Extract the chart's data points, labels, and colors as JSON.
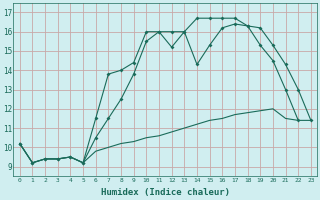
{
  "bg_color": "#d0eef0",
  "grid_color": "#c8a8a8",
  "line_color": "#1a6b5a",
  "xlabel": "Humidex (Indice chaleur)",
  "xlim": [
    -0.5,
    23.5
  ],
  "ylim": [
    8.5,
    17.5
  ],
  "xticks": [
    0,
    1,
    2,
    3,
    4,
    5,
    6,
    7,
    8,
    9,
    10,
    11,
    12,
    13,
    14,
    15,
    16,
    17,
    18,
    19,
    20,
    21,
    22,
    23
  ],
  "yticks": [
    9,
    10,
    11,
    12,
    13,
    14,
    15,
    16,
    17
  ],
  "line1_y": [
    10.2,
    9.2,
    9.4,
    9.4,
    9.5,
    9.2,
    9.8,
    10.0,
    10.2,
    10.3,
    10.5,
    10.6,
    10.8,
    11.0,
    11.2,
    11.4,
    11.5,
    11.7,
    11.8,
    11.9,
    12.0,
    11.5,
    11.4,
    11.4
  ],
  "line2_y": [
    10.2,
    9.2,
    9.4,
    9.4,
    9.5,
    9.2,
    11.5,
    13.8,
    14.0,
    14.4,
    16.0,
    16.0,
    15.2,
    16.0,
    14.3,
    15.3,
    16.2,
    16.4,
    16.3,
    15.3,
    14.5,
    13.0,
    11.4,
    null
  ],
  "line3_y": [
    10.2,
    9.2,
    9.4,
    9.4,
    9.5,
    9.2,
    10.5,
    11.5,
    12.5,
    13.8,
    15.5,
    16.0,
    16.0,
    16.0,
    16.7,
    16.7,
    16.7,
    16.7,
    16.3,
    16.2,
    15.3,
    14.3,
    13.0,
    11.4
  ],
  "line1_has_markers": false,
  "line2_has_markers": true,
  "line3_has_markers": true
}
